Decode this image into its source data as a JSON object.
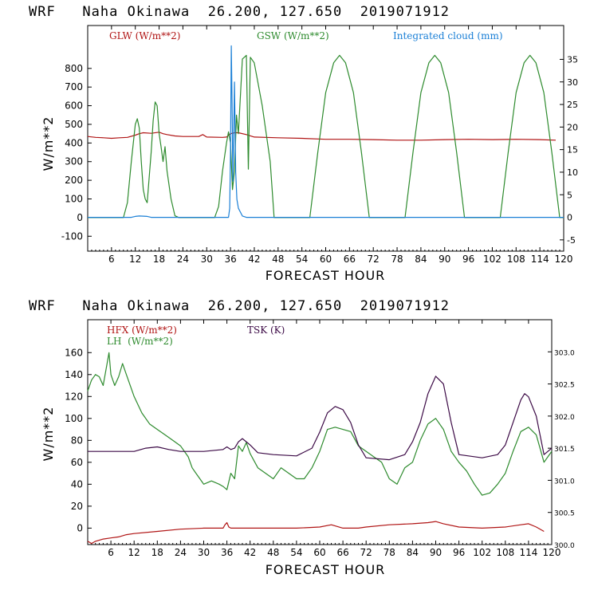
{
  "colors": {
    "red": "#b01414",
    "green": "#2e8b2e",
    "blue": "#1a7fd6",
    "purple": "#3c0a46"
  },
  "chart_data": [
    {
      "type": "line",
      "title": "WRF   Naha Okinawa  26.200, 127.650  2019071912",
      "xlabel": "FORECAST HOUR",
      "ylabel": "W/m**2",
      "xlim": [
        0,
        120
      ],
      "ylim": [
        -180,
        1030
      ],
      "y2lim": [
        -7.5,
        42.5
      ],
      "xticks": [
        "6",
        "12",
        "18",
        "24",
        "30",
        "36",
        "42",
        "48",
        "54",
        "60",
        "66",
        "72",
        "78",
        "84",
        "90",
        "96",
        "102",
        "108",
        "114",
        "120"
      ],
      "yticks": [
        "-100",
        "0",
        "100",
        "200",
        "300",
        "400",
        "500",
        "600",
        "700",
        "800"
      ],
      "y2ticks": [
        "-5",
        "0",
        "5",
        "10",
        "15",
        "20",
        "25",
        "30",
        "35"
      ],
      "legend": [
        "GLW (W/m**2)",
        "GSW (W/m**2)",
        "Integrated cloud (mm)"
      ],
      "series": [
        {
          "name": "GLW (W/m**2)",
          "axis": "left",
          "x": [
            0,
            2,
            4,
            6,
            8,
            10,
            12,
            13,
            14,
            16,
            18,
            19,
            20,
            22,
            24,
            28,
            29,
            30,
            34,
            35,
            36,
            37,
            38,
            40,
            42,
            48,
            54,
            60,
            66,
            72,
            78,
            84,
            90,
            96,
            102,
            108,
            114,
            118
          ],
          "y": [
            435,
            430,
            428,
            425,
            428,
            430,
            442,
            450,
            455,
            452,
            458,
            450,
            445,
            438,
            435,
            435,
            445,
            432,
            430,
            432,
            450,
            455,
            455,
            445,
            432,
            428,
            425,
            420,
            420,
            418,
            415,
            415,
            418,
            420,
            418,
            420,
            418,
            415
          ]
        },
        {
          "name": "GSW (W/m**2)",
          "axis": "left",
          "x": [
            0,
            9,
            10,
            11,
            12,
            12.5,
            13,
            13.5,
            14,
            14.5,
            15,
            16,
            16.5,
            17,
            17.5,
            18,
            18.5,
            19,
            19.5,
            20,
            21,
            22,
            23,
            32,
            33,
            34,
            35,
            35.5,
            36,
            36.5,
            37,
            37.5,
            38,
            39,
            40,
            40.5,
            41,
            42,
            44,
            46,
            47,
            56,
            58,
            60,
            62,
            63.5,
            65,
            67,
            69,
            71,
            80,
            82,
            84,
            86,
            87.5,
            89,
            91,
            93,
            95,
            104,
            106,
            108,
            110,
            111.5,
            113,
            115,
            117,
            119,
            120
          ],
          "y": [
            0,
            0,
            80,
            300,
            500,
            530,
            480,
            300,
            150,
            100,
            80,
            350,
            520,
            620,
            600,
            450,
            380,
            300,
            380,
            250,
            100,
            10,
            0,
            0,
            60,
            250,
            400,
            460,
            400,
            150,
            250,
            550,
            450,
            850,
            870,
            260,
            860,
            830,
            600,
            300,
            0,
            0,
            350,
            670,
            830,
            870,
            830,
            670,
            350,
            0,
            0,
            350,
            670,
            830,
            870,
            830,
            670,
            350,
            0,
            0,
            350,
            670,
            830,
            870,
            830,
            670,
            350,
            0,
            0
          ]
        },
        {
          "name": "Integrated cloud (mm)",
          "axis": "right",
          "x": [
            0,
            11,
            12,
            13,
            15,
            16,
            35.5,
            35.8,
            36,
            36.2,
            36.4,
            36.6,
            36.8,
            37,
            37.3,
            37.6,
            38,
            39,
            40,
            120
          ],
          "y": [
            0,
            0,
            0.2,
            0.3,
            0.2,
            0,
            0,
            2,
            14,
            38,
            25,
            8,
            18,
            30,
            10,
            4,
            2,
            0.3,
            0,
            0
          ]
        }
      ]
    },
    {
      "type": "line",
      "title": "WRF   Naha Okinawa  26.200, 127.650  2019071912",
      "xlabel": "FORECAST HOUR",
      "ylabel": "W/m**2",
      "xlim": [
        0,
        120
      ],
      "ylim": [
        -15,
        190
      ],
      "y2lim": [
        300.0,
        303.5
      ],
      "xticks": [
        "6",
        "12",
        "18",
        "24",
        "30",
        "36",
        "42",
        "48",
        "54",
        "60",
        "66",
        "72",
        "78",
        "84",
        "90",
        "96",
        "102",
        "108",
        "114",
        "120"
      ],
      "yticks": [
        "0",
        "20",
        "40",
        "60",
        "80",
        "100",
        "120",
        "140",
        "160"
      ],
      "y2ticks": [
        "300.0",
        "300.5",
        "301.0",
        "301.5",
        "302.0",
        "302.5",
        "303.0"
      ],
      "legend": [
        "HFX (W/m**2)",
        "LH  (W/m**2)",
        "TSK (K)"
      ],
      "series": [
        {
          "name": "HFX (W/m**2)",
          "axis": "left",
          "x": [
            0,
            1,
            2,
            4,
            6,
            8,
            10,
            12,
            18,
            24,
            30,
            34,
            35,
            35.5,
            36,
            36.5,
            37,
            38,
            42,
            48,
            54,
            60,
            63,
            66,
            70,
            72,
            78,
            84,
            88,
            90,
            92,
            96,
            102,
            108,
            112,
            114,
            116,
            118
          ],
          "y": [
            -12,
            -14,
            -12,
            -10,
            -9,
            -8,
            -6,
            -5,
            -3,
            -1,
            0,
            0,
            0,
            3,
            5,
            1,
            0,
            0,
            0,
            0,
            0,
            1,
            3,
            0,
            0,
            1,
            3,
            4,
            5,
            6,
            4,
            1,
            0,
            1,
            3,
            4,
            1,
            -3
          ]
        },
        {
          "name": "LH  (W/m**2)",
          "axis": "left",
          "x": [
            0,
            1,
            2,
            3,
            4,
            5,
            5.5,
            6,
            6.5,
            7,
            8,
            9,
            10,
            12,
            14,
            16,
            18,
            20,
            22,
            24,
            26,
            27,
            28,
            29,
            30,
            32,
            34,
            35,
            36,
            37,
            38,
            39,
            40,
            41,
            42,
            44,
            46,
            48,
            50,
            52,
            54,
            56,
            58,
            60,
            62,
            64,
            66,
            68,
            70,
            72,
            74,
            76,
            78,
            80,
            82,
            84,
            86,
            88,
            90,
            92,
            94,
            96,
            98,
            100,
            102,
            104,
            106,
            108,
            110,
            112,
            114,
            116,
            118,
            119,
            120
          ],
          "y": [
            125,
            135,
            140,
            138,
            130,
            150,
            160,
            140,
            135,
            130,
            138,
            150,
            140,
            120,
            105,
            95,
            90,
            85,
            80,
            75,
            65,
            55,
            50,
            45,
            40,
            43,
            40,
            38,
            35,
            50,
            45,
            75,
            70,
            78,
            68,
            55,
            50,
            45,
            55,
            50,
            45,
            45,
            55,
            70,
            90,
            92,
            90,
            88,
            75,
            70,
            65,
            60,
            45,
            40,
            55,
            60,
            80,
            95,
            100,
            90,
            70,
            60,
            52,
            40,
            30,
            32,
            40,
            50,
            70,
            88,
            92,
            85,
            60,
            65,
            70
          ]
        },
        {
          "name": "TSK (K)",
          "axis": "right",
          "x": [
            0,
            6,
            12,
            15,
            18,
            21,
            24,
            30,
            35,
            36,
            37,
            38,
            39,
            40,
            41,
            42,
            44,
            48,
            54,
            58,
            60,
            62,
            64,
            66,
            68,
            70,
            72,
            78,
            82,
            84,
            86,
            88,
            90,
            92,
            94,
            96,
            102,
            106,
            108,
            110,
            112,
            113,
            114,
            116,
            118,
            120
          ],
          "y": [
            301.45,
            301.45,
            301.45,
            301.5,
            301.52,
            301.48,
            301.45,
            301.45,
            301.48,
            301.52,
            301.48,
            301.5,
            301.6,
            301.65,
            301.6,
            301.55,
            301.43,
            301.4,
            301.38,
            301.5,
            301.75,
            302.05,
            302.15,
            302.1,
            301.9,
            301.55,
            301.35,
            301.32,
            301.4,
            301.6,
            301.9,
            302.35,
            302.62,
            302.5,
            301.9,
            301.4,
            301.35,
            301.4,
            301.55,
            301.9,
            302.25,
            302.35,
            302.3,
            302.0,
            301.4,
            301.5
          ]
        }
      ]
    }
  ]
}
